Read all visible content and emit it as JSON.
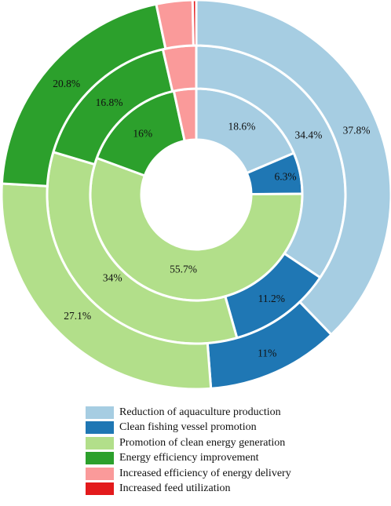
{
  "chart_data": {
    "type": "pie",
    "style": "nested-donut",
    "categories": [
      "Reduction of aquaculture production",
      "Clean fishing vessel promotion",
      "Promotion of clean energy generation",
      "Energy efficiency improvement",
      "Increased efficiency of energy delivery",
      "Increased feed utilization"
    ],
    "colors": [
      "#a6cde2",
      "#1f77b4",
      "#b2df8a",
      "#2ca02c",
      "#fa9a9a",
      "#e31a1c"
    ],
    "rings": [
      {
        "ring": "inner",
        "values": [
          18.6,
          6.3,
          55.7,
          16.0,
          3.4,
          0.0
        ],
        "labels": [
          "18.6%",
          "6.3%",
          "55.7%",
          "16%",
          "",
          ""
        ]
      },
      {
        "ring": "middle",
        "values": [
          34.4,
          11.2,
          34.0,
          16.8,
          3.6,
          0.0
        ],
        "labels": [
          "34.4%",
          "11.2%",
          "34%",
          "16.8%",
          "",
          ""
        ]
      },
      {
        "ring": "outer",
        "values": [
          37.8,
          11.0,
          27.1,
          20.8,
          3.0,
          0.3
        ],
        "labels": [
          "37.8%",
          "11%",
          "27.1%",
          "20.8%",
          "",
          ""
        ]
      }
    ],
    "legend_position": "bottom"
  }
}
